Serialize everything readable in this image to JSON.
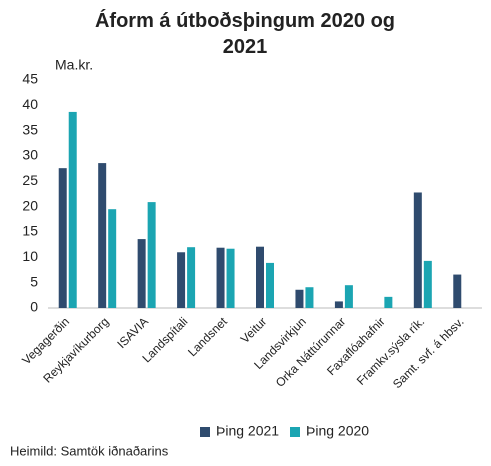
{
  "chart_data": {
    "type": "bar",
    "title": "Áform á útboðsþingum 2020 og 2021",
    "ylabel": "Ma.kr.",
    "categories": [
      "Vegagerðin",
      "Reykjavíkurborg",
      "ISAVIA",
      "Landspítali",
      "Landsnet",
      "Veitur",
      "Landsvirkjun",
      "Orka Náttúrunnar",
      "Faxaflóahafnir",
      "Framkv.sýsla rík.",
      "Samt. svf. á hbsv."
    ],
    "series": [
      {
        "name": "Þing 2021",
        "color": "#2f4b6e",
        "values": [
          27.6,
          28.6,
          13.6,
          11.0,
          11.9,
          12.1,
          3.6,
          1.3,
          null,
          22.8,
          6.6
        ]
      },
      {
        "name": "Þing 2020",
        "color": "#1ba5b2",
        "values": [
          38.7,
          19.5,
          20.9,
          12.0,
          11.7,
          8.9,
          4.1,
          4.5,
          2.2,
          9.3,
          null
        ]
      }
    ],
    "ylim": [
      0,
      45
    ],
    "yticks": [
      0,
      5,
      10,
      15,
      20,
      25,
      30,
      35,
      40,
      45
    ],
    "legend": "bottom",
    "source": "Heimild: Samtök iðnaðarins"
  }
}
